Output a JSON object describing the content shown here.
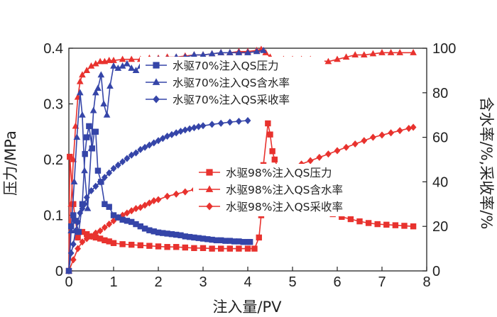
{
  "chart_data": {
    "type": "line",
    "xlabel": "注入量/PV",
    "ylabel_left": "压力/MPa",
    "ylabel_right": "含水率/%,采收率/%",
    "xlim": [
      0,
      8
    ],
    "ylim_left": [
      0,
      0.4
    ],
    "ylim_right": [
      0,
      100
    ],
    "x_ticks": [
      "0",
      "1",
      "2",
      "3",
      "4",
      "5",
      "6",
      "7",
      "8"
    ],
    "y_left_ticks": [
      "0",
      "0.1",
      "0.2",
      "0.3",
      "0.4"
    ],
    "y_right_ticks": [
      "0",
      "20",
      "40",
      "60",
      "80",
      "100"
    ],
    "colors": {
      "blue": "#3545a8",
      "red": "#e8322e"
    },
    "legend_groups": [
      {
        "placement": "upper-center",
        "items": [
          0,
          1,
          2
        ]
      },
      {
        "placement": "middle-right",
        "items": [
          3,
          4,
          5
        ]
      }
    ],
    "series": [
      {
        "name": "水驱70%注入QS压力",
        "axis": "left",
        "color": "blue",
        "marker": "square",
        "points": [
          [
            0,
            0
          ],
          [
            0.05,
            0.08
          ],
          [
            0.1,
            0.1
          ],
          [
            0.15,
            0.09
          ],
          [
            0.22,
            0.07
          ],
          [
            0.3,
            0.12
          ],
          [
            0.36,
            0.21
          ],
          [
            0.4,
            0.24
          ],
          [
            0.45,
            0.26
          ],
          [
            0.52,
            0.22
          ],
          [
            0.57,
            0.25
          ],
          [
            0.6,
            0.25
          ],
          [
            0.65,
            0.18
          ],
          [
            0.72,
            0.16
          ],
          [
            0.8,
            0.12
          ],
          [
            0.9,
            0.115
          ],
          [
            1.0,
            0.1
          ],
          [
            1.1,
            0.096
          ],
          [
            1.2,
            0.092
          ],
          [
            1.3,
            0.09
          ],
          [
            1.4,
            0.088
          ],
          [
            1.5,
            0.084
          ],
          [
            1.6,
            0.08
          ],
          [
            1.7,
            0.076
          ],
          [
            1.8,
            0.073
          ],
          [
            1.9,
            0.071
          ],
          [
            2.0,
            0.069
          ],
          [
            2.1,
            0.068
          ],
          [
            2.2,
            0.067
          ],
          [
            2.3,
            0.066
          ],
          [
            2.4,
            0.065
          ],
          [
            2.5,
            0.064
          ],
          [
            2.6,
            0.062
          ],
          [
            2.7,
            0.061
          ],
          [
            2.8,
            0.06
          ],
          [
            2.9,
            0.059
          ],
          [
            3.0,
            0.058
          ],
          [
            3.1,
            0.057
          ],
          [
            3.2,
            0.056
          ],
          [
            3.3,
            0.055
          ],
          [
            3.4,
            0.055
          ],
          [
            3.5,
            0.054
          ],
          [
            3.6,
            0.054
          ],
          [
            3.7,
            0.053
          ],
          [
            3.8,
            0.053
          ],
          [
            3.9,
            0.052
          ],
          [
            4.0,
            0.052
          ],
          [
            4.05,
            0.052
          ]
        ]
      },
      {
        "name": "水驱70%注入QS含水率",
        "axis": "right",
        "color": "blue",
        "marker": "triangle",
        "points": [
          [
            0,
            0
          ],
          [
            0.05,
            18
          ],
          [
            0.12,
            40
          ],
          [
            0.18,
            60
          ],
          [
            0.25,
            80
          ],
          [
            0.3,
            70
          ],
          [
            0.35,
            45
          ],
          [
            0.42,
            28
          ],
          [
            0.5,
            55
          ],
          [
            0.55,
            72
          ],
          [
            0.6,
            80
          ],
          [
            0.65,
            82
          ],
          [
            0.72,
            88
          ],
          [
            0.78,
            75
          ],
          [
            0.85,
            70
          ],
          [
            0.92,
            83
          ],
          [
            1.0,
            92
          ],
          [
            1.1,
            91
          ],
          [
            1.2,
            92
          ],
          [
            1.3,
            93
          ],
          [
            1.4,
            91
          ],
          [
            1.5,
            90
          ],
          [
            1.6,
            92
          ],
          [
            1.7,
            93
          ],
          [
            1.8,
            94
          ],
          [
            1.9,
            94
          ],
          [
            2.0,
            95
          ],
          [
            2.2,
            95
          ],
          [
            2.4,
            96
          ],
          [
            2.6,
            96
          ],
          [
            2.8,
            97
          ],
          [
            3.0,
            97
          ],
          [
            3.2,
            97.5
          ],
          [
            3.4,
            98
          ],
          [
            3.6,
            98
          ],
          [
            3.8,
            98
          ],
          [
            4.0,
            98
          ],
          [
            4.2,
            98.5
          ],
          [
            4.35,
            99
          ]
        ]
      },
      {
        "name": "水驱70%注入QS采收率",
        "axis": "right",
        "color": "blue",
        "marker": "diamond",
        "points": [
          [
            0,
            0
          ],
          [
            0.05,
            8
          ],
          [
            0.1,
            12
          ],
          [
            0.15,
            18
          ],
          [
            0.2,
            22
          ],
          [
            0.25,
            26
          ],
          [
            0.3,
            28
          ],
          [
            0.35,
            30
          ],
          [
            0.4,
            33
          ],
          [
            0.5,
            36
          ],
          [
            0.6,
            38
          ],
          [
            0.7,
            40
          ],
          [
            0.8,
            42
          ],
          [
            0.9,
            44
          ],
          [
            1.0,
            46
          ],
          [
            1.1,
            47.5
          ],
          [
            1.2,
            49
          ],
          [
            1.3,
            50.5
          ],
          [
            1.4,
            52
          ],
          [
            1.5,
            53
          ],
          [
            1.6,
            54.5
          ],
          [
            1.7,
            55.5
          ],
          [
            1.8,
            56.5
          ],
          [
            1.9,
            57.5
          ],
          [
            2.0,
            58.5
          ],
          [
            2.1,
            59.5
          ],
          [
            2.2,
            60.5
          ],
          [
            2.3,
            61.2
          ],
          [
            2.4,
            62
          ],
          [
            2.5,
            62.7
          ],
          [
            2.6,
            63.3
          ],
          [
            2.7,
            63.8
          ],
          [
            2.8,
            64.3
          ],
          [
            2.9,
            64.8
          ],
          [
            3.0,
            65.2
          ],
          [
            3.2,
            65.8
          ],
          [
            3.4,
            66.3
          ],
          [
            3.6,
            66.8
          ],
          [
            3.8,
            67.2
          ],
          [
            4.0,
            67.5
          ]
        ]
      },
      {
        "name": "水驱98%注入QS压力",
        "axis": "left",
        "color": "red",
        "marker": "square",
        "points": [
          [
            0,
            0
          ],
          [
            0.02,
            0.205
          ],
          [
            0.1,
            0.12
          ],
          [
            0.2,
            0.06
          ],
          [
            0.3,
            0.07
          ],
          [
            0.4,
            0.066
          ],
          [
            0.5,
            0.062
          ],
          [
            0.6,
            0.06
          ],
          [
            0.7,
            0.058
          ],
          [
            0.8,
            0.055
          ],
          [
            0.9,
            0.053
          ],
          [
            1.0,
            0.05
          ],
          [
            1.2,
            0.048
          ],
          [
            1.4,
            0.047
          ],
          [
            1.6,
            0.046
          ],
          [
            1.8,
            0.045
          ],
          [
            2.0,
            0.044
          ],
          [
            2.2,
            0.043
          ],
          [
            2.4,
            0.043
          ],
          [
            2.6,
            0.042
          ],
          [
            2.8,
            0.041
          ],
          [
            3.0,
            0.041
          ],
          [
            3.2,
            0.04
          ],
          [
            3.4,
            0.04
          ],
          [
            3.6,
            0.04
          ],
          [
            3.8,
            0.04
          ],
          [
            4.0,
            0.04
          ],
          [
            4.15,
            0.04
          ],
          [
            4.25,
            0.06
          ],
          [
            4.3,
            0.1
          ],
          [
            4.35,
            0.19
          ],
          [
            4.45,
            0.265
          ],
          [
            4.5,
            0.245
          ],
          [
            4.55,
            0.215
          ],
          [
            4.6,
            0.2
          ],
          [
            4.7,
            0.18
          ],
          [
            4.9,
            0.16
          ],
          [
            5.1,
            0.14
          ],
          [
            5.3,
            0.13
          ],
          [
            5.5,
            0.12
          ],
          [
            5.7,
            0.11
          ],
          [
            5.9,
            0.102
          ],
          [
            6.1,
            0.097
          ],
          [
            6.3,
            0.093
          ],
          [
            6.5,
            0.089
          ],
          [
            6.7,
            0.086
          ],
          [
            6.9,
            0.084
          ],
          [
            7.1,
            0.083
          ],
          [
            7.3,
            0.082
          ],
          [
            7.5,
            0.081
          ],
          [
            7.7,
            0.08
          ]
        ]
      },
      {
        "name": "水驱98%注入QS含水率",
        "axis": "right",
        "color": "red",
        "marker": "triangle",
        "points": [
          [
            0,
            0
          ],
          [
            0.05,
            30
          ],
          [
            0.1,
            50
          ],
          [
            0.15,
            65
          ],
          [
            0.2,
            78
          ],
          [
            0.25,
            85
          ],
          [
            0.3,
            88
          ],
          [
            0.4,
            90
          ],
          [
            0.5,
            92
          ],
          [
            0.6,
            93
          ],
          [
            0.7,
            94
          ],
          [
            0.8,
            94
          ],
          [
            0.9,
            94.5
          ],
          [
            1.0,
            94.5
          ],
          [
            1.2,
            95
          ],
          [
            1.4,
            95
          ],
          [
            1.6,
            95
          ],
          [
            1.8,
            95.5
          ],
          [
            2.0,
            95.5
          ],
          [
            2.2,
            96
          ],
          [
            2.4,
            96
          ],
          [
            2.6,
            96.5
          ],
          [
            2.8,
            97
          ],
          [
            3.0,
            97
          ],
          [
            3.2,
            97.5
          ],
          [
            3.4,
            98
          ],
          [
            3.6,
            98
          ],
          [
            3.8,
            98.5
          ],
          [
            4.0,
            98.5
          ],
          [
            4.2,
            99
          ],
          [
            4.3,
            99.5
          ],
          [
            4.4,
            98
          ],
          [
            4.5,
            96
          ],
          [
            4.6,
            94
          ],
          [
            4.8,
            95
          ],
          [
            5.0,
            95
          ],
          [
            5.2,
            95
          ],
          [
            5.4,
            95
          ],
          [
            5.6,
            94.5
          ],
          [
            5.8,
            94
          ],
          [
            6.0,
            95
          ],
          [
            6.2,
            96
          ],
          [
            6.4,
            97
          ],
          [
            6.6,
            97
          ],
          [
            6.8,
            97.5
          ],
          [
            7.0,
            98
          ],
          [
            7.2,
            98
          ],
          [
            7.4,
            98
          ],
          [
            7.7,
            98
          ]
        ]
      },
      {
        "name": "水驱98%注入QS采收率",
        "axis": "right",
        "color": "red",
        "marker": "diamond",
        "points": [
          [
            0,
            0
          ],
          [
            0.1,
            5
          ],
          [
            0.2,
            10
          ],
          [
            0.3,
            13
          ],
          [
            0.4,
            14.5
          ],
          [
            0.5,
            15.5
          ],
          [
            0.6,
            17
          ],
          [
            0.7,
            18
          ],
          [
            0.8,
            19.5
          ],
          [
            0.9,
            21
          ],
          [
            1.0,
            22.5
          ],
          [
            1.1,
            24
          ],
          [
            1.2,
            25
          ],
          [
            1.3,
            26
          ],
          [
            1.4,
            27
          ],
          [
            1.5,
            28
          ],
          [
            1.6,
            28.5
          ],
          [
            1.7,
            29.5
          ],
          [
            1.8,
            30.5
          ],
          [
            1.9,
            31.5
          ],
          [
            2.0,
            32
          ],
          [
            2.2,
            33.5
          ],
          [
            2.4,
            34.5
          ],
          [
            2.6,
            35.5
          ],
          [
            2.8,
            36.5
          ],
          [
            3.0,
            37.5
          ],
          [
            3.2,
            38.5
          ],
          [
            3.4,
            39.5
          ],
          [
            3.6,
            40
          ],
          [
            3.8,
            41
          ],
          [
            4.0,
            41.5
          ],
          [
            4.2,
            42
          ],
          [
            4.4,
            42.5
          ],
          [
            4.6,
            43.5
          ],
          [
            4.8,
            45
          ],
          [
            5.0,
            46.5
          ],
          [
            5.2,
            48
          ],
          [
            5.4,
            49.5
          ],
          [
            5.6,
            51
          ],
          [
            5.8,
            52.5
          ],
          [
            6.0,
            54
          ],
          [
            6.2,
            55.5
          ],
          [
            6.4,
            57
          ],
          [
            6.6,
            58.5
          ],
          [
            6.8,
            60
          ],
          [
            7.0,
            61
          ],
          [
            7.2,
            62
          ],
          [
            7.4,
            63
          ],
          [
            7.6,
            64
          ],
          [
            7.7,
            64.5
          ]
        ]
      }
    ]
  }
}
